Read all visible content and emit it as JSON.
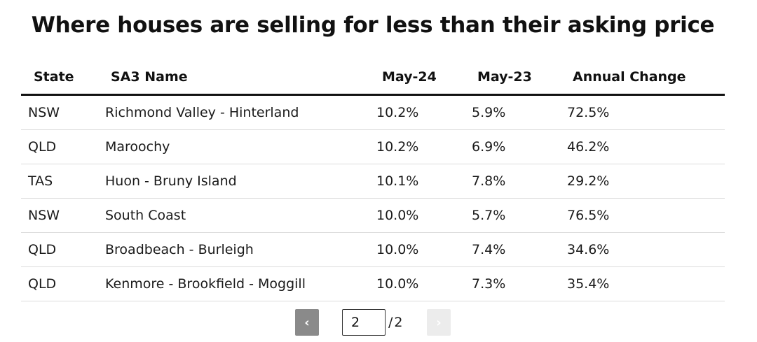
{
  "title": "Where houses are selling for less than their asking price",
  "table": {
    "headers": {
      "state": "State",
      "sa3_name": "SA3 Name",
      "may24": "May-24",
      "may23": "May-23",
      "annual_change": "Annual Change"
    },
    "rows": [
      {
        "state": "NSW",
        "sa3_name": "Richmond Valley - Hinterland",
        "may24": "10.2%",
        "may23": "5.9%",
        "annual_change": "72.5%"
      },
      {
        "state": "QLD",
        "sa3_name": "Maroochy",
        "may24": "10.2%",
        "may23": "6.9%",
        "annual_change": "46.2%"
      },
      {
        "state": "TAS",
        "sa3_name": "Huon - Bruny Island",
        "may24": "10.1%",
        "may23": "7.8%",
        "annual_change": "29.2%"
      },
      {
        "state": "NSW",
        "sa3_name": "South Coast",
        "may24": "10.0%",
        "may23": "5.7%",
        "annual_change": "76.5%"
      },
      {
        "state": "QLD",
        "sa3_name": "Broadbeach - Burleigh",
        "may24": "10.0%",
        "may23": "7.4%",
        "annual_change": "34.6%"
      },
      {
        "state": "QLD",
        "sa3_name": "Kenmore - Brookfield - Moggill",
        "may24": "10.0%",
        "may23": "7.3%",
        "annual_change": "35.4%"
      }
    ]
  },
  "pagination": {
    "prev_icon": "chevron-left-icon",
    "prev_glyph": "‹",
    "next_icon": "chevron-right-icon",
    "next_glyph": "›",
    "current_page": "2",
    "separator": "/",
    "total_pages": "2",
    "prev_enabled": true,
    "next_enabled": false
  },
  "colors": {
    "header_rule": "#111111",
    "row_rule": "#dcdcdc",
    "prev_button": "#8a8a8a",
    "next_button_disabled": "#ececec"
  }
}
